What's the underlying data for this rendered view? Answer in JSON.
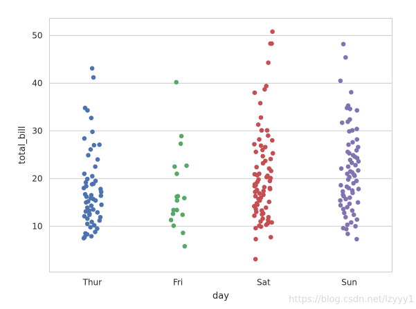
{
  "chart_data": {
    "type": "scatter",
    "subtype": "stripplot",
    "title": "",
    "xlabel": "day",
    "ylabel": "total_bill",
    "categories": [
      "Thur",
      "Fri",
      "Sat",
      "Sun"
    ],
    "ylim": [
      0.4,
      53.6
    ],
    "yticks": [
      10,
      20,
      30,
      40,
      50
    ],
    "grid": "horizontal",
    "colors": [
      "#4c72b0",
      "#55a868",
      "#c44e52",
      "#8172b2"
    ],
    "series": [
      {
        "category": "Thur",
        "values": [
          43.1,
          41.2,
          34.8,
          34.3,
          32.7,
          29.8,
          28.4,
          27.1,
          27.0,
          26.1,
          24.9,
          24.0,
          22.5,
          21.0,
          20.5,
          19.9,
          19.5,
          19.2,
          18.9,
          18.8,
          18.4,
          18.0,
          17.8,
          17.2,
          16.7,
          16.5,
          16.4,
          16.2,
          15.9,
          15.7,
          15.4,
          15.2,
          15.0,
          14.5,
          14.3,
          13.9,
          13.5,
          13.3,
          13.1,
          12.9,
          12.6,
          12.4,
          12.1,
          11.9,
          11.6,
          11.2,
          10.9,
          10.5,
          10.2,
          9.8,
          9.5,
          8.8,
          8.5,
          8.3,
          7.9,
          7.7,
          7.5
        ]
      },
      {
        "category": "Fri",
        "values": [
          40.2,
          28.9,
          27.3,
          22.7,
          22.5,
          21.0,
          16.3,
          16.2,
          15.9,
          15.4,
          13.4,
          13.4,
          12.6,
          12.4,
          11.3,
          10.1,
          8.6,
          5.8
        ]
      },
      {
        "category": "Sat",
        "values": [
          50.8,
          48.3,
          48.3,
          44.3,
          39.4,
          38.7,
          38.0,
          35.8,
          32.8,
          31.3,
          30.1,
          30.1,
          29.0,
          28.2,
          28.0,
          27.2,
          26.9,
          26.6,
          26.0,
          25.6,
          25.3,
          24.7,
          24.1,
          23.7,
          23.2,
          22.4,
          22.1,
          21.6,
          21.0,
          20.9,
          20.7,
          20.6,
          20.4,
          20.3,
          20.1,
          19.8,
          19.5,
          19.3,
          18.8,
          18.6,
          18.4,
          18.2,
          18.0,
          17.8,
          17.6,
          17.4,
          17.2,
          16.9,
          16.6,
          16.3,
          16.0,
          15.7,
          15.4,
          15.1,
          14.8,
          14.5,
          14.2,
          13.9,
          13.6,
          13.3,
          13.0,
          12.7,
          12.5,
          12.2,
          11.9,
          11.6,
          11.3,
          11.0,
          10.8,
          10.6,
          10.3,
          10.1,
          9.9,
          9.6,
          7.7,
          7.3,
          3.1
        ]
      },
      {
        "category": "Sun",
        "values": [
          48.2,
          45.4,
          40.5,
          38.1,
          35.3,
          34.8,
          34.6,
          34.3,
          32.4,
          31.9,
          31.7,
          30.4,
          30.1,
          29.9,
          28.2,
          27.6,
          27.1,
          26.6,
          25.9,
          25.6,
          25.3,
          24.9,
          24.6,
          24.3,
          23.9,
          23.6,
          23.3,
          22.8,
          22.5,
          22.1,
          21.7,
          21.5,
          21.3,
          21.0,
          20.8,
          20.6,
          20.3,
          19.8,
          19.5,
          19.0,
          18.6,
          18.3,
          18.0,
          17.8,
          17.5,
          17.3,
          17.0,
          16.6,
          16.3,
          16.0,
          15.7,
          15.4,
          15.0,
          14.7,
          14.4,
          14.0,
          13.6,
          13.3,
          12.8,
          12.4,
          11.9,
          11.4,
          10.8,
          10.3,
          10.0,
          9.6,
          9.4,
          8.4,
          7.3
        ]
      }
    ]
  },
  "watermark": "https://blog.csdn.net/lzyyy1"
}
